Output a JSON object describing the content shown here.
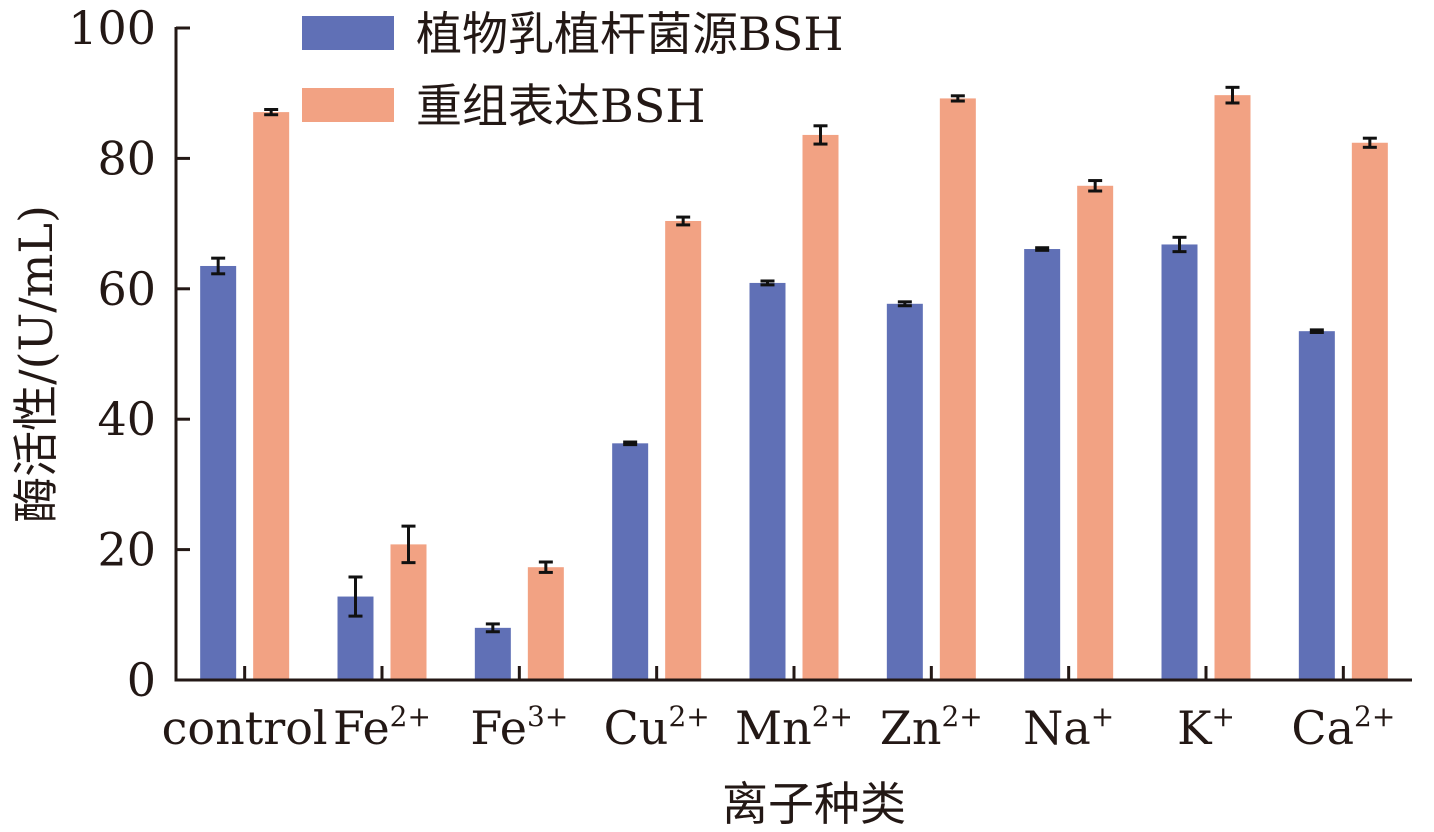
{
  "chart_data": {
    "type": "bar",
    "xlabel": "离子种类",
    "ylabel": "酶活性/(U/mL)",
    "ylim": [
      0,
      100
    ],
    "yticks": [
      0,
      20,
      40,
      60,
      80,
      100
    ],
    "grid": false,
    "legend_position": "top-center",
    "categories": [
      {
        "base": "control",
        "sup": ""
      },
      {
        "base": "Fe",
        "sup": "2+"
      },
      {
        "base": "Fe",
        "sup": "3+"
      },
      {
        "base": "Cu",
        "sup": "2+"
      },
      {
        "base": "Mn",
        "sup": "2+"
      },
      {
        "base": "Zn",
        "sup": "2+"
      },
      {
        "base": "Na",
        "sup": "+"
      },
      {
        "base": "K",
        "sup": "+"
      },
      {
        "base": "Ca",
        "sup": "2+"
      }
    ],
    "series": [
      {
        "name": "植物乳植杆菌源BSH",
        "color": "#6070b6",
        "values": [
          63.5,
          12.8,
          8.0,
          36.3,
          60.9,
          57.7,
          66.1,
          66.8,
          53.5
        ],
        "errors": [
          1.2,
          3.0,
          0.6,
          0.2,
          0.3,
          0.3,
          0.2,
          1.1,
          0.2
        ]
      },
      {
        "name": "重组表达BSH",
        "color": "#f2a283",
        "values": [
          87.1,
          20.8,
          17.3,
          70.4,
          83.6,
          89.2,
          75.8,
          89.7,
          82.4
        ],
        "errors": [
          0.4,
          2.8,
          0.8,
          0.6,
          1.4,
          0.4,
          0.8,
          1.2,
          0.7
        ]
      }
    ]
  }
}
